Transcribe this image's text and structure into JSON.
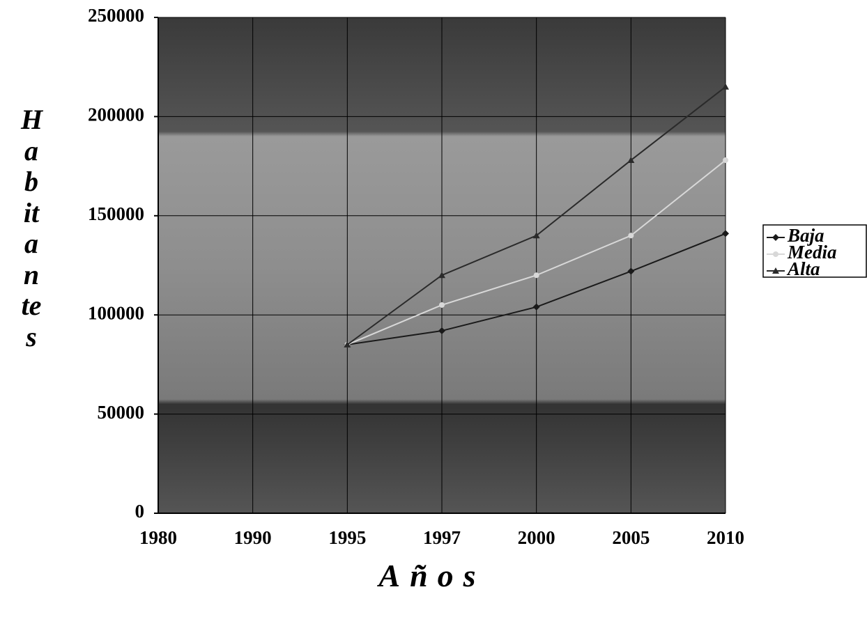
{
  "chart_data": {
    "type": "line",
    "x_label": "Años",
    "y_label": "Habitantes",
    "categories": [
      "1980",
      "1990",
      "1995",
      "1997",
      "2000",
      "2005",
      "2010"
    ],
    "series": [
      {
        "name": "Baja",
        "color": "#1a1a1a",
        "marker": "diamond",
        "values": [
          null,
          null,
          85000,
          92000,
          104000,
          122000,
          141000
        ]
      },
      {
        "name": "Media",
        "color": "#d8d8d8",
        "marker": "circle",
        "values": [
          null,
          null,
          85000,
          105000,
          120000,
          140000,
          178000
        ]
      },
      {
        "name": "Alta",
        "color": "#2a2a2a",
        "marker": "triangle",
        "values": [
          null,
          null,
          85000,
          120000,
          140000,
          178000,
          215000
        ]
      }
    ],
    "ylim": [
      0,
      250000
    ],
    "yticks": [
      0,
      50000,
      100000,
      150000,
      200000,
      250000
    ],
    "grid": true,
    "legend": "right"
  }
}
